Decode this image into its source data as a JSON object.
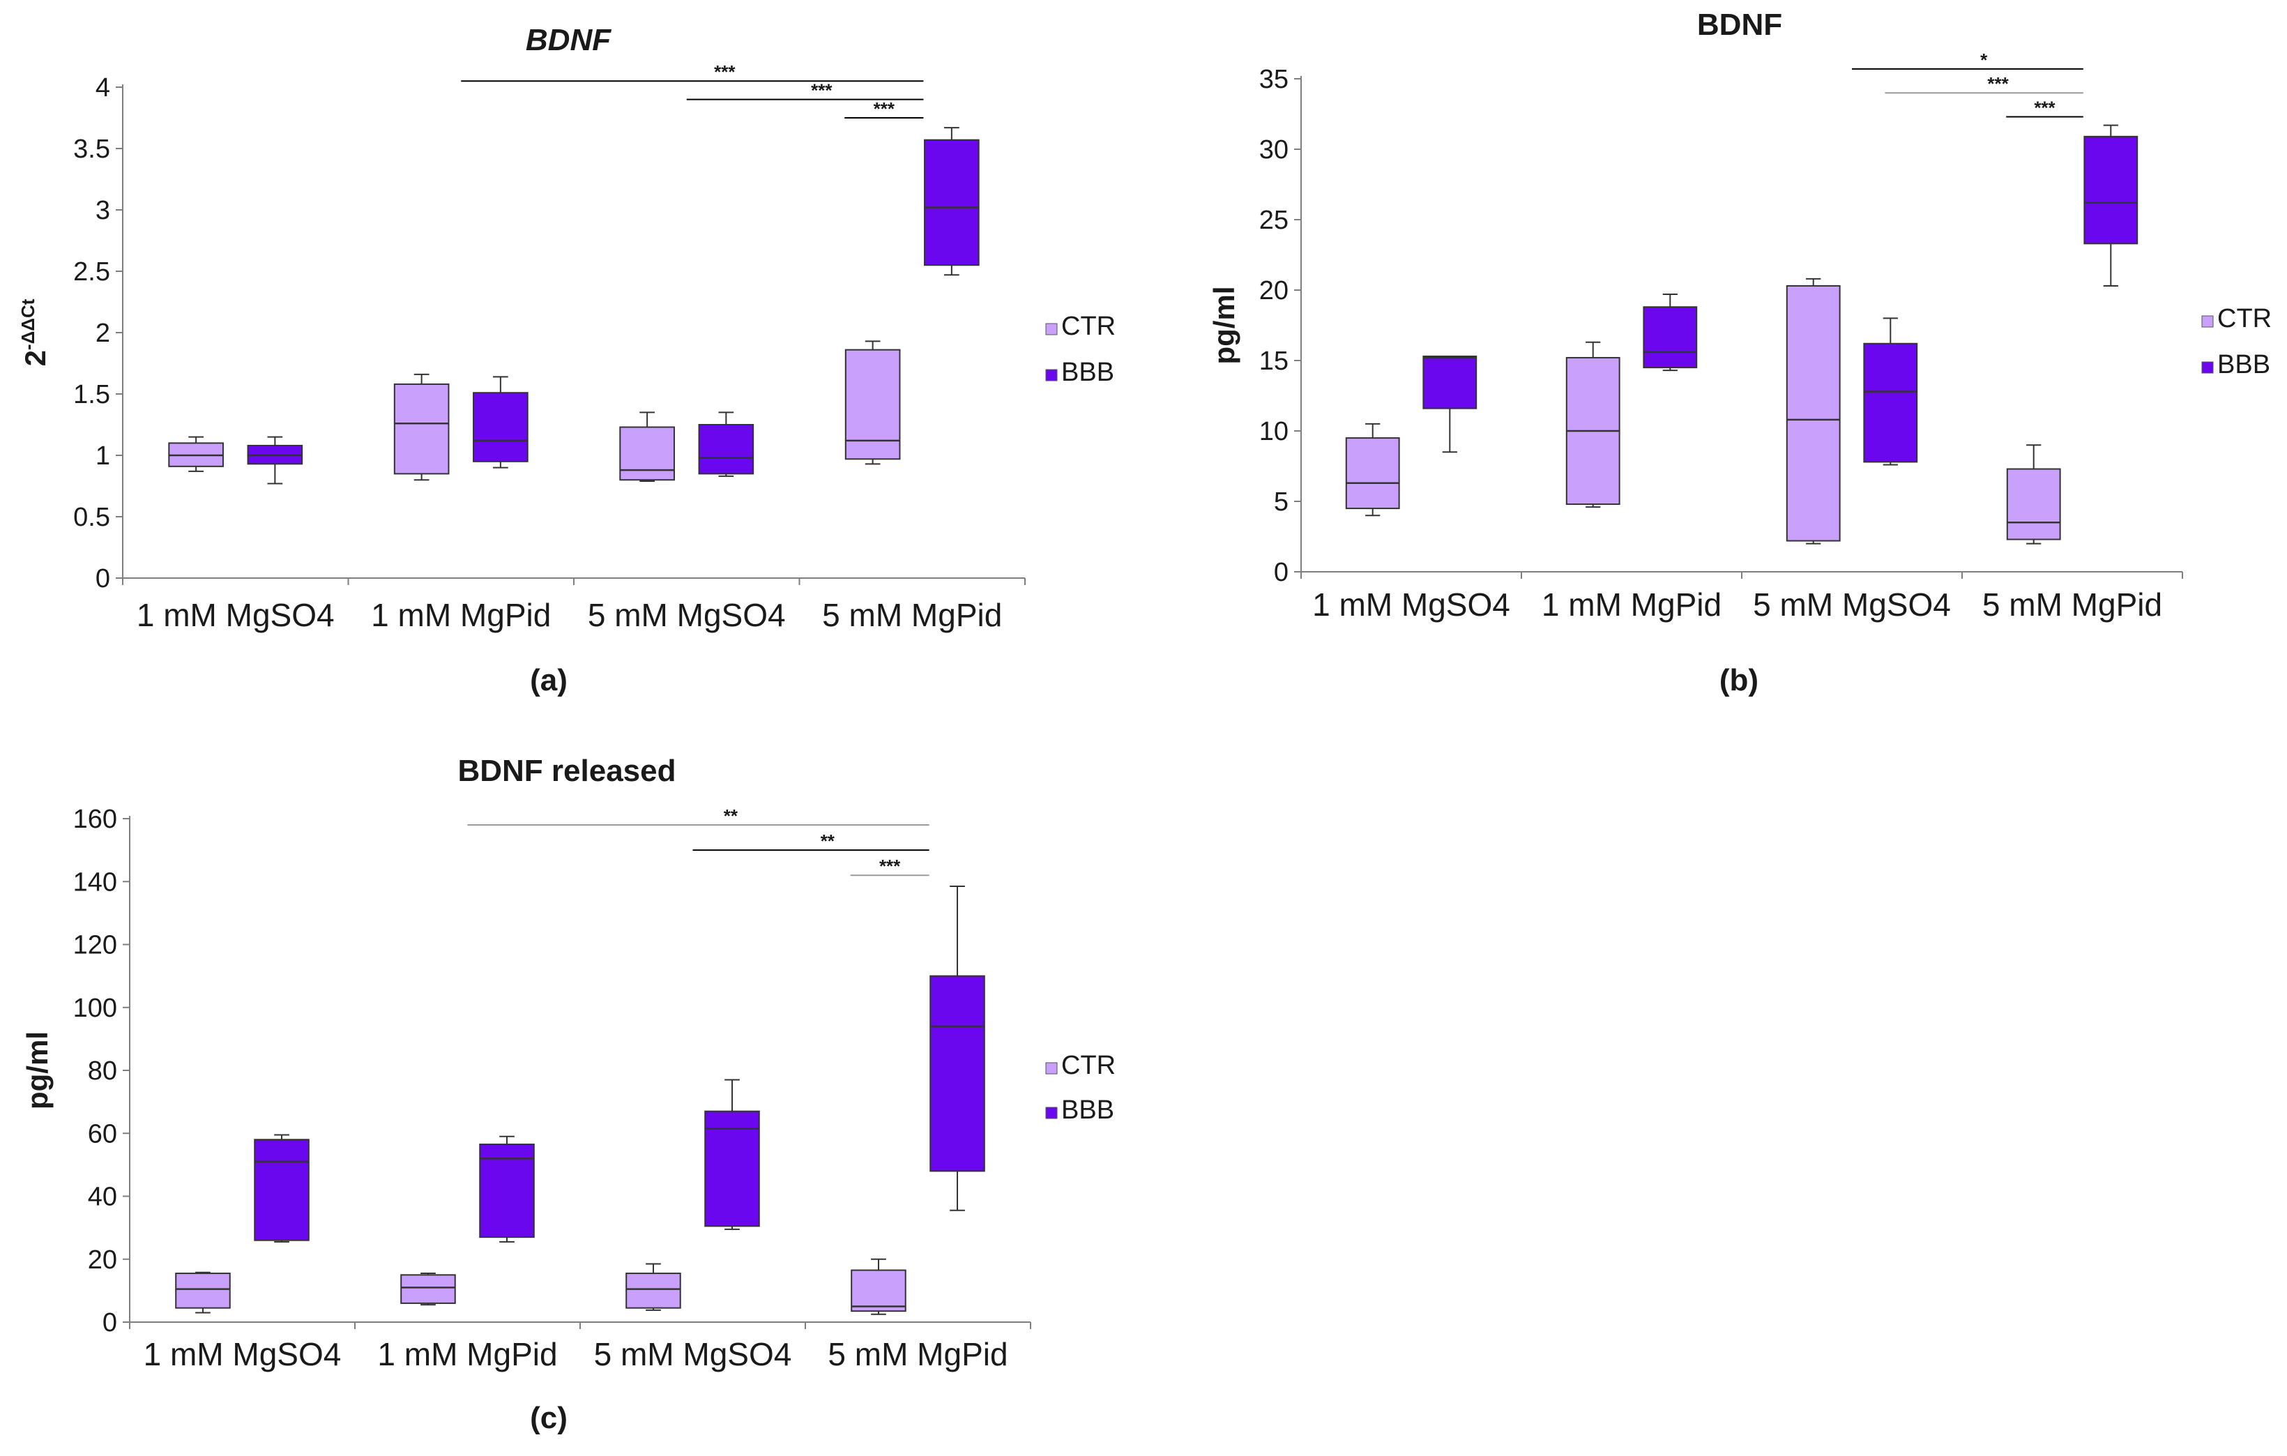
{
  "colors": {
    "CTR": "#c9a0fb",
    "BBB": "#6a07ef"
  },
  "chart_data": [
    {
      "id": "a",
      "type": "box",
      "title": "BDNF",
      "title_italic": true,
      "ylabel_base": "2",
      "ylabel_sup": "-ΔΔCt",
      "panel_label": "(a)",
      "ylim": [
        0,
        4
      ],
      "yticks": [
        0,
        0.5,
        1,
        1.5,
        2,
        2.5,
        3,
        3.5,
        4
      ],
      "ytick_labels": [
        "0",
        "0.5",
        "1",
        "1.5",
        "2",
        "2.5",
        "3",
        "3.5",
        "4"
      ],
      "categories": [
        "1 mM MgSO4",
        "1 mM MgPid",
        "5 mM MgSO4",
        "5 mM MgPid"
      ],
      "legend": [
        {
          "name": "CTR",
          "label": "CTR"
        },
        {
          "name": "BBB",
          "label": "BBB"
        }
      ],
      "series": [
        {
          "name": "CTR",
          "boxes": [
            {
              "min": 0.87,
              "q1": 0.91,
              "median": 1.0,
              "q3": 1.1,
              "max": 1.15
            },
            {
              "min": 0.8,
              "q1": 0.85,
              "median": 1.26,
              "q3": 1.58,
              "max": 1.66
            },
            {
              "min": 0.79,
              "q1": 0.8,
              "median": 0.88,
              "q3": 1.23,
              "max": 1.35
            },
            {
              "min": 0.93,
              "q1": 0.97,
              "median": 1.12,
              "q3": 1.86,
              "max": 1.93
            }
          ]
        },
        {
          "name": "BBB",
          "boxes": [
            {
              "min": 0.77,
              "q1": 0.93,
              "median": 1.0,
              "q3": 1.08,
              "max": 1.15
            },
            {
              "min": 0.9,
              "q1": 0.95,
              "median": 1.12,
              "q3": 1.51,
              "max": 1.64
            },
            {
              "min": 0.83,
              "q1": 0.85,
              "median": 0.98,
              "q3": 1.25,
              "max": 1.35
            },
            {
              "min": 2.47,
              "q1": 2.55,
              "median": 3.02,
              "q3": 3.57,
              "max": 3.67
            }
          ]
        }
      ],
      "significance": [
        {
          "label": "***",
          "from_group": 1,
          "to_group": 3,
          "y": 4.05,
          "style": "dark"
        },
        {
          "label": "***",
          "from_group": 2,
          "to_group": 3,
          "y": 3.9,
          "style": "dark"
        },
        {
          "label": "***",
          "from_group": 3,
          "to_group": 3,
          "y": 3.75,
          "style": "dark"
        }
      ]
    },
    {
      "id": "b",
      "type": "box",
      "title": "BDNF",
      "title_italic": false,
      "ylabel": "pg/ml",
      "panel_label": "(b)",
      "ylim": [
        0,
        35
      ],
      "yticks": [
        0,
        5,
        10,
        15,
        20,
        25,
        30,
        35
      ],
      "ytick_labels": [
        "0",
        "5",
        "10",
        "15",
        "20",
        "25",
        "30",
        "35"
      ],
      "categories": [
        "1 mM MgSO4",
        "1 mM MgPid",
        "5 mM MgSO4",
        "5 mM MgPid"
      ],
      "legend": [
        {
          "name": "CTR",
          "label": "CTR"
        },
        {
          "name": "BBB",
          "label": "BBB"
        }
      ],
      "series": [
        {
          "name": "CTR",
          "boxes": [
            {
              "min": 4.0,
              "q1": 4.5,
              "median": 6.3,
              "q3": 9.5,
              "max": 10.5
            },
            {
              "min": 4.6,
              "q1": 4.8,
              "median": 10.0,
              "q3": 15.2,
              "max": 16.3
            },
            {
              "min": 2.0,
              "q1": 2.2,
              "median": 10.8,
              "q3": 20.3,
              "max": 20.8
            },
            {
              "min": 2.0,
              "q1": 2.3,
              "median": 3.5,
              "q3": 7.3,
              "max": 9.0
            }
          ]
        },
        {
          "name": "BBB",
          "boxes": [
            {
              "min": 8.5,
              "q1": 11.6,
              "median": 15.2,
              "q3": 15.3,
              "max": 15.3
            },
            {
              "min": 14.3,
              "q1": 14.5,
              "median": 15.6,
              "q3": 18.8,
              "max": 19.7
            },
            {
              "min": 7.6,
              "q1": 7.8,
              "median": 12.8,
              "q3": 16.2,
              "max": 18.0
            },
            {
              "min": 20.3,
              "q1": 23.3,
              "median": 26.2,
              "q3": 30.9,
              "max": 31.7
            }
          ]
        }
      ],
      "significance": [
        {
          "label": "*",
          "from_group": 2,
          "to_group": 3,
          "y": 35.7,
          "style": "dark"
        },
        {
          "label": "***",
          "from_group": 2.15,
          "to_group": 3,
          "y": 34.0,
          "style": "light"
        },
        {
          "label": "***",
          "from_group": 3,
          "to_group": 3,
          "y": 32.3,
          "style": "dark"
        }
      ]
    },
    {
      "id": "c",
      "type": "box",
      "title": "BDNF released",
      "title_italic": false,
      "ylabel": "pg/ml",
      "panel_label": "(c)",
      "ylim": [
        0,
        160
      ],
      "yticks": [
        0,
        20,
        40,
        60,
        80,
        100,
        120,
        140,
        160
      ],
      "ytick_labels": [
        "0",
        "20",
        "40",
        "60",
        "80",
        "100",
        "120",
        "140",
        "160"
      ],
      "categories": [
        "1 mM MgSO4",
        "1 mM MgPid",
        "5 mM MgSO4",
        "5 mM MgPid"
      ],
      "legend": [
        {
          "name": "CTR",
          "label": "CTR"
        },
        {
          "name": "BBB",
          "label": "BBB"
        }
      ],
      "series": [
        {
          "name": "CTR",
          "boxes": [
            {
              "min": 3.0,
              "q1": 4.5,
              "median": 10.5,
              "q3": 15.5,
              "max": 15.8
            },
            {
              "min": 5.5,
              "q1": 6.0,
              "median": 11.0,
              "q3": 15.0,
              "max": 15.5
            },
            {
              "min": 3.8,
              "q1": 4.5,
              "median": 10.5,
              "q3": 15.5,
              "max": 18.5
            },
            {
              "min": 2.5,
              "q1": 3.5,
              "median": 5.0,
              "q3": 16.5,
              "max": 20.0
            }
          ]
        },
        {
          "name": "BBB",
          "boxes": [
            {
              "min": 25.5,
              "q1": 26.0,
              "median": 51.0,
              "q3": 58.0,
              "max": 59.5
            },
            {
              "min": 25.5,
              "q1": 27.0,
              "median": 52.0,
              "q3": 56.5,
              "max": 59.0
            },
            {
              "min": 29.5,
              "q1": 30.5,
              "median": 61.5,
              "q3": 67.0,
              "max": 77.0
            },
            {
              "min": 35.5,
              "q1": 48.0,
              "median": 94.0,
              "q3": 110.0,
              "max": 138.5
            }
          ]
        }
      ],
      "significance": [
        {
          "label": "**",
          "from_group": 1,
          "to_group": 3,
          "y": 158,
          "style": "light"
        },
        {
          "label": "**",
          "from_group": 2,
          "to_group": 3,
          "y": 150,
          "style": "dark"
        },
        {
          "label": "***",
          "from_group": 3,
          "to_group": 3,
          "y": 142,
          "style": "light"
        }
      ]
    }
  ]
}
